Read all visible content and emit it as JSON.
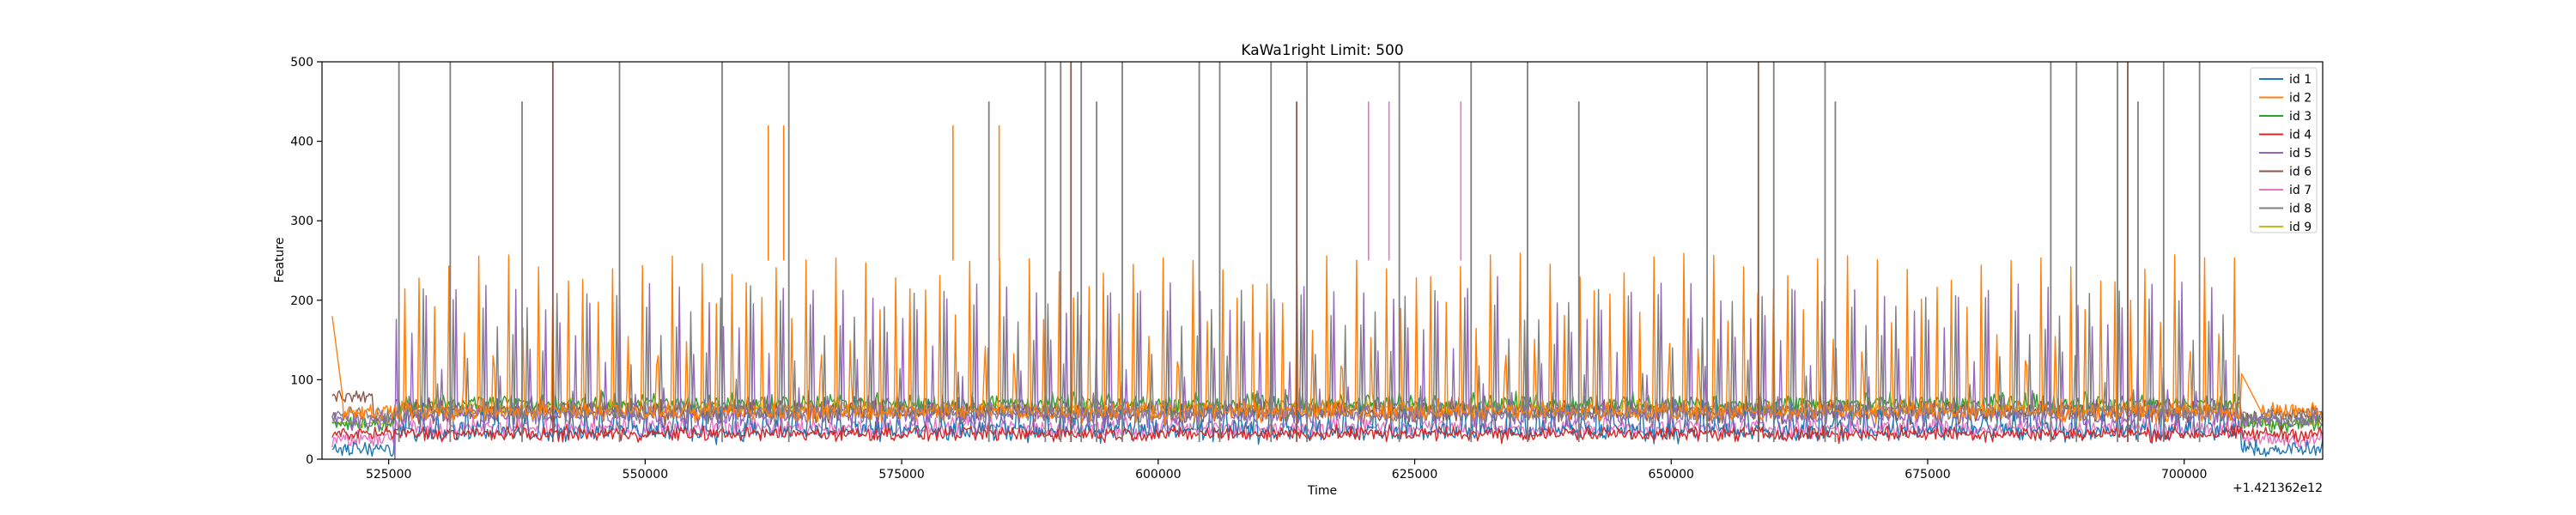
{
  "chart_data": {
    "type": "line",
    "title": "KaWa1right Limit: 500",
    "xlabel": "Time",
    "ylabel": "Feature",
    "x_offset_label": "+1.421362e12",
    "xlim": [
      518500,
      713500
    ],
    "ylim": [
      0,
      500
    ],
    "x_ticks": [
      525000,
      550000,
      575000,
      600000,
      625000,
      650000,
      675000,
      700000
    ],
    "y_ticks": [
      0,
      100,
      200,
      300,
      400,
      500
    ],
    "grid": false,
    "legend_position": "top-right",
    "sampling_note": "",
    "series": [
      {
        "name": "id 1",
        "color": "#1f77b4"
      },
      {
        "name": "id 2",
        "color": "#ff7f0e"
      },
      {
        "name": "id 3",
        "color": "#2ca02c"
      },
      {
        "name": "id 4",
        "color": "#d62728"
      },
      {
        "name": "id 5",
        "color": "#9467bd"
      },
      {
        "name": "id 6",
        "color": "#8c564b"
      },
      {
        "name": "id 7",
        "color": "#e377c2"
      },
      {
        "name": "id 8",
        "color": "#7f7f7f"
      },
      {
        "name": "id 9",
        "color": "#bcbd22"
      }
    ]
  }
}
